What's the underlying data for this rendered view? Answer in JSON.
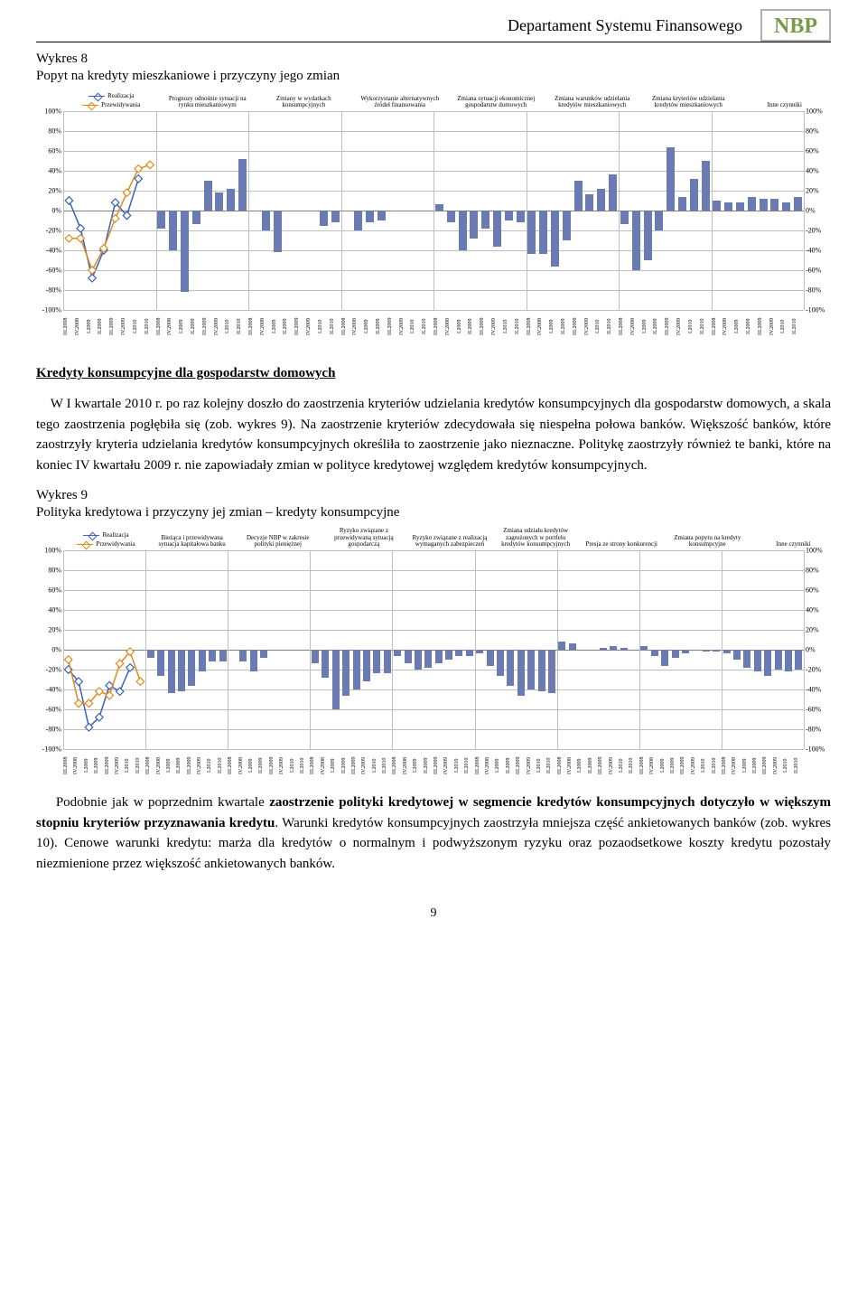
{
  "header": {
    "department": "Departament Systemu Finansowego",
    "logo_text": "NBP"
  },
  "logo": {
    "border_color": "#b0b0b0",
    "text_color": "#7a9a4a"
  },
  "chart8": {
    "heading_1": "Wykres 8",
    "heading_2": "Popyt na kredyty mieszkaniowe i przyczyny jego zmian",
    "legend_items": [
      {
        "label": "Realizacja",
        "color": "#3b5fbf"
      },
      {
        "label": "Przewidywania",
        "color": "#e08a1e"
      }
    ],
    "x_categories_short": [
      "III.2008",
      "IV.2008",
      "I.2009",
      "II.2009",
      "III.2009",
      "IV.2009",
      "I.2010",
      "II.2010"
    ],
    "group_labels": [
      "Prognozy odnośnie sytuacji na rynku mieszkaniowym",
      "Zmiany w wydatkach konsumpcyjnych",
      "Wykorzystanie alternatywnych źródeł finansowania",
      "Zmiana sytuacji ekonomicznej gospodarstw domowych",
      "Zmiana warunków udzielania kredytów mieszkaniowych",
      "Zmiana kryteriów udzielania kredytów mieszkaniowych",
      "Inne czynniki"
    ],
    "y_axis": {
      "min": -100,
      "max": 100,
      "step": 20,
      "suffix": "%"
    },
    "realizacja": [
      10,
      -18,
      -68,
      -40,
      8,
      -5,
      32,
      null
    ],
    "przewidywania": [
      -28,
      -28,
      -60,
      -38,
      -8,
      18,
      42,
      46
    ],
    "bar_groups": [
      [
        -18,
        -40,
        -82,
        -14,
        30,
        18,
        22,
        52
      ],
      [
        0,
        -20,
        -42,
        0,
        0,
        0,
        -15,
        -12
      ],
      [
        0,
        -20,
        -12,
        -10,
        0,
        0,
        0,
        0
      ],
      [
        6,
        -12,
        -40,
        -28,
        -18,
        -36,
        -10,
        -12
      ],
      [
        -44,
        -44,
        -56,
        -30,
        30,
        16,
        22,
        36
      ],
      [
        -14,
        -60,
        -50,
        -20,
        64,
        14,
        32,
        50
      ],
      [
        10,
        8,
        8,
        14,
        12,
        12,
        8,
        14
      ]
    ],
    "bar_color": "#6a7ab3",
    "grid_color": "#bfbfbf",
    "separator_color": "#bfbfbf"
  },
  "between": {
    "section_title": "Kredyty konsumpcyjne dla gospodarstw domowych",
    "paragraph": "W I kwartale 2010 r. po raz kolejny doszło do zaostrzenia kryteriów udzielania kredytów konsumpcyjnych dla gospodarstw domowych, a skala tego zaostrzenia pogłębiła się (zob. wykres 9). Na zaostrzenie kryteriów zdecydowała się niespełna połowa banków. Większość banków, które zaostrzyły kryteria udzielania kredytów konsumpcyjnych określiła to zaostrzenie jako nieznaczne. Politykę zaostrzyły również te banki, które na koniec IV kwartału 2009 r. nie zapowiadały zmian w polityce kredytowej względem kredytów konsumpcyjnych."
  },
  "chart9": {
    "heading_1": "Wykres 9",
    "heading_2": "Polityka kredytowa i przyczyny jej zmian – kredyty konsumpcyjne",
    "legend_items": [
      {
        "label": "Realizacja",
        "color": "#3b5fbf"
      },
      {
        "label": "Przewidywania",
        "color": "#e08a1e"
      }
    ],
    "x_categories_short": [
      "III.2008",
      "IV.2008",
      "I.2009",
      "II.2009",
      "III.2009",
      "IV.2009",
      "I.2010",
      "II.2010"
    ],
    "group_labels": [
      "Bieżąca i przewidywana sytuacja kapitałowa banku",
      "Decyzje NBP w zakresie polityki pieniężnej",
      "Ryzyko związane z przewidywaną sytuacją gospodarczą",
      "Ryzyko związane z realizacją wymaganych zabezpieczeń",
      "Zmiana udziału kredytów zagrożonych w portfelu kredytów konsumpcyjnych",
      "Presja ze strony konkurencji",
      "Zmiana popytu na kredyty konsumpcyjne",
      "Inne czynniki"
    ],
    "y_axis": {
      "min": -100,
      "max": 100,
      "step": 20,
      "suffix": "%"
    },
    "realizacja": [
      -20,
      -32,
      -78,
      -68,
      -36,
      -42,
      -18,
      null
    ],
    "przewidywania": [
      -10,
      -54,
      -54,
      -42,
      -46,
      -14,
      -2,
      -32
    ],
    "bar_groups": [
      [
        -8,
        -26,
        -44,
        -42,
        -36,
        -22,
        -12,
        -12
      ],
      [
        0,
        -12,
        -22,
        -8,
        0,
        0,
        0,
        0
      ],
      [
        -14,
        -28,
        -60,
        -46,
        -40,
        -32,
        -24,
        -24
      ],
      [
        -6,
        -14,
        -20,
        -18,
        -14,
        -10,
        -6,
        -6
      ],
      [
        -4,
        -16,
        -26,
        -36,
        -46,
        -40,
        -42,
        -44
      ],
      [
        8,
        6,
        0,
        0,
        2,
        4,
        2,
        0
      ],
      [
        4,
        -6,
        -16,
        -8,
        -4,
        0,
        -2,
        -2
      ],
      [
        -4,
        -10,
        -18,
        -22,
        -26,
        -20,
        -22,
        -20
      ]
    ],
    "bar_color": "#6a7ab3",
    "grid_color": "#bfbfbf",
    "separator_color": "#bfbfbf"
  },
  "after": {
    "paragraph": "Podobnie jak w poprzednim kwartale zaostrzenie polityki kredytowej w segmencie kredytów konsumpcyjnych dotyczyło w większym stopniu kryteriów przyznawania kredytu. Warunki kredytów konsumpcyjnych zaostrzyła mniejsza część ankietowanych banków (zob. wykres 10). Cenowe warunki kredytu: marża dla kredytów o normalnym i podwyższonym ryzyku oraz pozaodsetkowe koszty kredytu  pozostały niezmienione przez większość ankietowanych banków.",
    "bold_span": "zaostrzenie polityki kredytowej w segmencie kredytów konsumpcyjnych dotyczyło w większym stopniu kryteriów przyznawania kredytu"
  },
  "footer": {
    "page_num": "9"
  }
}
